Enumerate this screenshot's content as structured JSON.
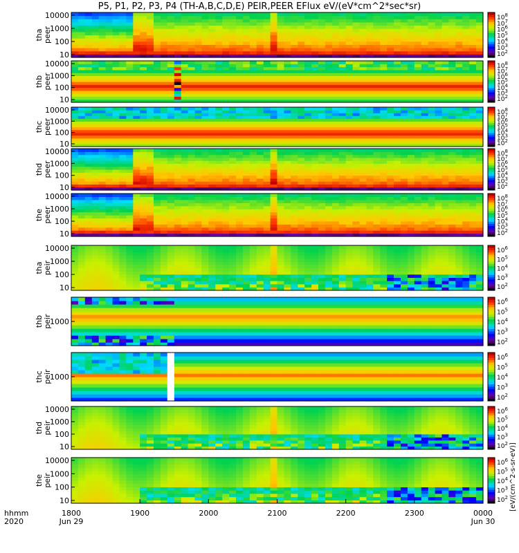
{
  "title": "P5, P1, P2, P3, P4 (TH-A,B,C,D,E) PEIR,PEER EFlux eV/(eV*cm^2*sec*sr)",
  "colorbar_label": "[eV/(cm^2-s-sr-eV)]",
  "time_axis": {
    "row_labels": [
      "hhmm",
      "2020"
    ],
    "tick_labels": [
      "1800",
      "1900",
      "2000",
      "2100",
      "2200",
      "2300",
      "0000"
    ],
    "date_labels": [
      "Jun 29",
      "Jun 30"
    ]
  },
  "chart_data": [
    {
      "type": "heatmap",
      "panel": "tha peer",
      "ylabel": [
        "tha",
        "peer"
      ],
      "yscale": "log",
      "yticks": [
        "10",
        "100",
        "1000",
        "10000"
      ],
      "colorbar_ticks": [
        "10^8",
        "10^7",
        "10^6",
        "10^5",
        "10^4",
        "10^3",
        "10^2"
      ],
      "pattern": "plasmaA"
    },
    {
      "type": "heatmap",
      "panel": "thb peer",
      "ylabel": [
        "thb",
        "peer"
      ],
      "yscale": "log",
      "yticks": [
        "10",
        "100",
        "1000",
        "10000"
      ],
      "colorbar_ticks": [
        "10^8",
        "10^7",
        "10^6",
        "10^5",
        "10^4",
        "10^3",
        "10^2"
      ],
      "pattern": "bands"
    },
    {
      "type": "heatmap",
      "panel": "thc peer",
      "ylabel": [
        "thc",
        "peer"
      ],
      "yscale": "log",
      "yticks": [
        "10",
        "100",
        "1000",
        "10000"
      ],
      "colorbar_ticks": [
        "10^8",
        "10^7",
        "10^6",
        "10^5",
        "10^4",
        "10^3",
        "10^2"
      ],
      "pattern": "bandsBlue"
    },
    {
      "type": "heatmap",
      "panel": "thd peer",
      "ylabel": [
        "thd",
        "peer"
      ],
      "yscale": "log",
      "yticks": [
        "10",
        "100",
        "1000",
        "10000"
      ],
      "colorbar_ticks": [
        "10^8",
        "10^7",
        "10^6",
        "10^5",
        "10^4",
        "10^3",
        "10^2"
      ],
      "pattern": "plasmaA"
    },
    {
      "type": "heatmap",
      "panel": "the peer",
      "ylabel": [
        "the",
        "peer"
      ],
      "yscale": "log",
      "yticks": [
        "10",
        "100",
        "1000",
        "10000"
      ],
      "colorbar_ticks": [
        "10^8",
        "10^7",
        "10^6",
        "10^5",
        "10^4",
        "10^3",
        "10^2"
      ],
      "pattern": "plasmaA"
    },
    {
      "type": "heatmap",
      "panel": "tha peir",
      "ylabel": [
        "tha",
        "peir"
      ],
      "yscale": "log",
      "yticks": [
        "10",
        "100",
        "1000",
        "10000"
      ],
      "colorbar_ticks": [
        "10^6",
        "10^5",
        "10^4",
        "10^3",
        "10^2"
      ],
      "pattern": "plasmaI"
    },
    {
      "type": "heatmap",
      "panel": "thb peir",
      "ylabel": [
        "thb",
        "peir"
      ],
      "yscale": "log",
      "yticks": [
        "1000"
      ],
      "colorbar_ticks": [
        "10^6",
        "10^5",
        "10^4",
        "10^3",
        "10^2"
      ],
      "pattern": "ionBands"
    },
    {
      "type": "heatmap",
      "panel": "thc peir",
      "ylabel": [
        "thc",
        "peir"
      ],
      "yscale": "log",
      "yticks": [
        "1000"
      ],
      "colorbar_ticks": [
        "10^6",
        "10^5",
        "10^4",
        "10^3",
        "10^2"
      ],
      "pattern": "ionBandsC"
    },
    {
      "type": "heatmap",
      "panel": "thd peir",
      "ylabel": [
        "thd",
        "peir"
      ],
      "yscale": "log",
      "yticks": [
        "10",
        "100",
        "1000",
        "10000"
      ],
      "colorbar_ticks": [
        "10^6",
        "10^5",
        "10^4",
        "10^3",
        "10^2"
      ],
      "pattern": "plasmaI"
    },
    {
      "type": "heatmap",
      "panel": "the peir",
      "ylabel": [
        "the",
        "peir"
      ],
      "yscale": "log",
      "yticks": [
        "10",
        "100",
        "1000",
        "10000"
      ],
      "colorbar_ticks": [
        "10^6",
        "10^5",
        "10^4",
        "10^3",
        "10^2"
      ],
      "pattern": "plasmaI"
    }
  ]
}
